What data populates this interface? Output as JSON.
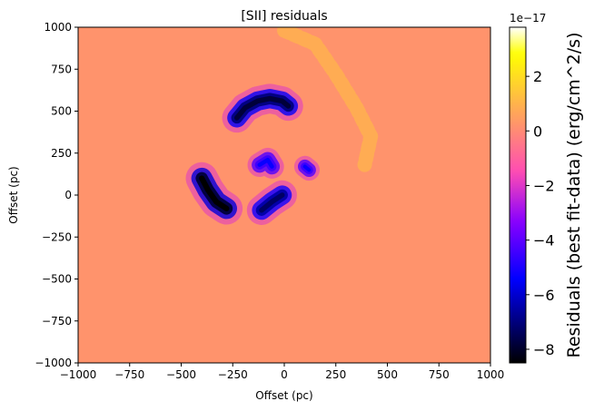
{
  "chart_data": {
    "type": "heatmap",
    "title": "[SII] residuals",
    "xlabel": "Offset (pc)",
    "ylabel": "Offset (pc)",
    "xlim": [
      -1000,
      1000
    ],
    "ylim": [
      -1000,
      1000
    ],
    "xticks": [
      -1000,
      -750,
      -500,
      -250,
      0,
      250,
      500,
      750,
      1000
    ],
    "yticks": [
      -1000,
      -750,
      -500,
      -250,
      0,
      250,
      500,
      750,
      1000
    ],
    "xtick_labels": [
      "−1000",
      "−750",
      "−500",
      "−250",
      "0",
      "250",
      "500",
      "750",
      "1000"
    ],
    "ytick_labels": [
      "−1000",
      "−750",
      "−500",
      "−250",
      "0",
      "250",
      "500",
      "750",
      "1000"
    ],
    "colormap": "gnuplot2",
    "colorbar": {
      "label": "Residuals (best fit-data) (erg/cm^2/s)",
      "offset_text": "1e−17",
      "vmin": -8.5,
      "vmax": 3.8,
      "ticks": [
        2,
        0,
        -2,
        -4,
        -6,
        -8
      ],
      "tick_labels": [
        "2",
        "0",
        "−2",
        "−4",
        "−6",
        "−8"
      ]
    },
    "background_value": 0.2,
    "features": [
      {
        "name": "upper arc",
        "points": [
          [
            -230,
            460
          ],
          [
            -190,
            520
          ],
          [
            -130,
            560
          ],
          [
            -70,
            575
          ],
          [
            -10,
            560
          ],
          [
            20,
            530
          ]
        ],
        "value": -7.0,
        "width": 55
      },
      {
        "name": "left arc",
        "points": [
          [
            -400,
            100
          ],
          [
            -370,
            30
          ],
          [
            -330,
            -40
          ],
          [
            -280,
            -80
          ]
        ],
        "value": -7.8,
        "width": 60
      },
      {
        "name": "lower blob",
        "points": [
          [
            -110,
            -90
          ],
          [
            -60,
            -40
          ],
          [
            -10,
            0
          ]
        ],
        "value": -6.5,
        "width": 55
      },
      {
        "name": "center clump",
        "points": [
          [
            -120,
            180
          ],
          [
            -80,
            210
          ],
          [
            -60,
            170
          ]
        ],
        "value": -4.5,
        "width": 45
      },
      {
        "name": "right knot",
        "points": [
          [
            100,
            170
          ],
          [
            120,
            150
          ]
        ],
        "value": -4.5,
        "width": 40
      }
    ],
    "positive_patches": [
      {
        "points": [
          [
            0,
            980
          ],
          [
            150,
            900
          ],
          [
            250,
            720
          ],
          [
            350,
            520
          ],
          [
            420,
            350
          ],
          [
            390,
            180
          ]
        ],
        "value": 1.0,
        "width": 70
      }
    ],
    "grid": false
  }
}
